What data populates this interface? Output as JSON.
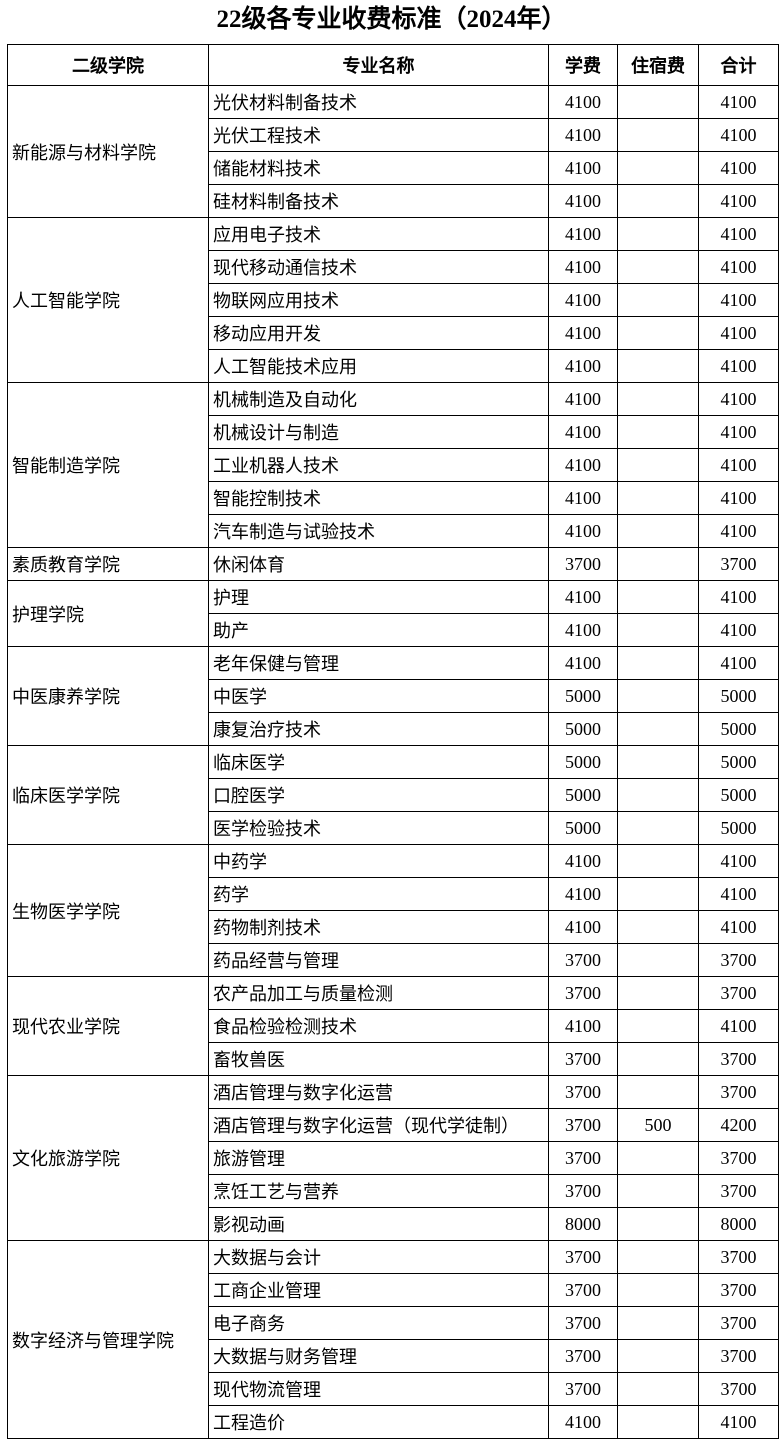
{
  "header": {
    "title": "22级各专业收费标准（2024年）"
  },
  "table": {
    "columns": [
      "二级学院",
      "专业名称",
      "学费",
      "住宿费",
      "合计"
    ],
    "groups": [
      {
        "college": "新能源与材料学院",
        "majors": [
          {
            "name": "光伏材料制备技术",
            "fee": 4100,
            "total": 4100
          },
          {
            "name": "光伏工程技术",
            "fee": 4100,
            "total": 4100
          },
          {
            "name": "储能材料技术",
            "fee": 4100,
            "total": 4100
          },
          {
            "name": "硅材料制备技术",
            "fee": 4100,
            "total": 4100
          }
        ]
      },
      {
        "college": "人工智能学院",
        "majors": [
          {
            "name": "应用电子技术",
            "fee": 4100,
            "total": 4100
          },
          {
            "name": "现代移动通信技术",
            "fee": 4100,
            "total": 4100
          },
          {
            "name": "物联网应用技术",
            "fee": 4100,
            "total": 4100
          },
          {
            "name": "移动应用开发",
            "fee": 4100,
            "total": 4100
          },
          {
            "name": "人工智能技术应用",
            "fee": 4100,
            "total": 4100
          }
        ]
      },
      {
        "college": "智能制造学院",
        "majors": [
          {
            "name": "机械制造及自动化",
            "fee": 4100,
            "total": 4100
          },
          {
            "name": "机械设计与制造",
            "fee": 4100,
            "total": 4100
          },
          {
            "name": "工业机器人技术",
            "fee": 4100,
            "total": 4100
          },
          {
            "name": "智能控制技术",
            "fee": 4100,
            "total": 4100
          },
          {
            "name": "汽车制造与试验技术",
            "fee": 4100,
            "total": 4100
          }
        ]
      },
      {
        "college": "素质教育学院",
        "majors": [
          {
            "name": "休闲体育",
            "fee": 3700,
            "total": 3700
          }
        ]
      },
      {
        "college": "护理学院",
        "majors": [
          {
            "name": "护理",
            "fee": 4100,
            "total": 4100
          },
          {
            "name": "助产",
            "fee": 4100,
            "total": 4100
          }
        ]
      },
      {
        "college": "中医康养学院",
        "majors": [
          {
            "name": "老年保健与管理",
            "fee": 4100,
            "total": 4100
          },
          {
            "name": "中医学",
            "fee": 5000,
            "total": 5000
          },
          {
            "name": "康复治疗技术",
            "fee": 5000,
            "total": 5000
          }
        ]
      },
      {
        "college": "临床医学学院",
        "majors": [
          {
            "name": "临床医学",
            "fee": 5000,
            "total": 5000
          },
          {
            "name": "口腔医学",
            "fee": 5000,
            "total": 5000
          },
          {
            "name": "医学检验技术",
            "fee": 5000,
            "total": 5000
          }
        ]
      },
      {
        "college": "生物医学学院",
        "majors": [
          {
            "name": "中药学",
            "fee": 4100,
            "total": 4100
          },
          {
            "name": "药学",
            "fee": 4100,
            "total": 4100
          },
          {
            "name": "药物制剂技术",
            "fee": 4100,
            "total": 4100
          },
          {
            "name": "药品经营与管理",
            "fee": 3700,
            "total": 3700
          }
        ]
      },
      {
        "college": "现代农业学院",
        "majors": [
          {
            "name": "农产品加工与质量检测",
            "fee": 3700,
            "total": 3700
          },
          {
            "name": "食品检验检测技术",
            "fee": 4100,
            "total": 4100
          },
          {
            "name": "畜牧兽医",
            "fee": 3700,
            "total": 3700
          }
        ]
      },
      {
        "college": "文化旅游学院",
        "majors": [
          {
            "name": "酒店管理与数字化运营",
            "fee": 3700,
            "total": 3700
          },
          {
            "name": "酒店管理与数字化运营（现代学徒制）",
            "fee": 3700,
            "dorm": 500,
            "total": 4200
          },
          {
            "name": "旅游管理",
            "fee": 3700,
            "total": 3700
          },
          {
            "name": "烹饪工艺与营养",
            "fee": 3700,
            "total": 3700
          },
          {
            "name": "影视动画",
            "fee": 8000,
            "total": 8000
          }
        ]
      },
      {
        "college": "数字经济与管理学院",
        "majors": [
          {
            "name": "大数据与会计",
            "fee": 3700,
            "total": 3700
          },
          {
            "name": "工商企业管理",
            "fee": 3700,
            "total": 3700
          },
          {
            "name": "电子商务",
            "fee": 3700,
            "total": 3700
          },
          {
            "name": "大数据与财务管理",
            "fee": 3700,
            "total": 3700
          },
          {
            "name": "现代物流管理",
            "fee": 3700,
            "total": 3700
          },
          {
            "name": "工程造价",
            "fee": 4100,
            "total": 4100
          }
        ]
      }
    ]
  }
}
